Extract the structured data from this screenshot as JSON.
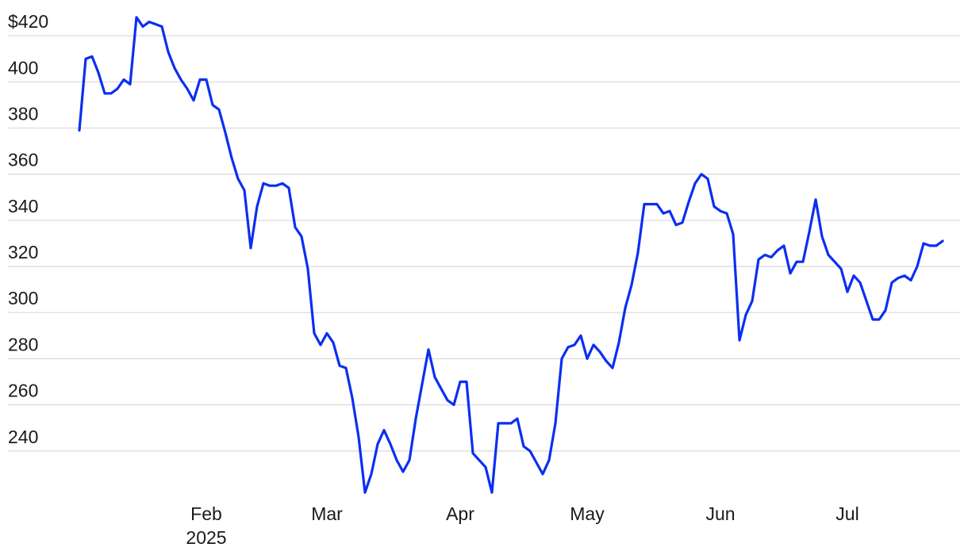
{
  "chart_data": {
    "type": "line",
    "categories": [
      null,
      null,
      null,
      null,
      null,
      null,
      null,
      null,
      null,
      null,
      null,
      null,
      null,
      null,
      null,
      null,
      null,
      null,
      null,
      null,
      "Feb\n2025",
      null,
      null,
      null,
      null,
      null,
      null,
      null,
      null,
      null,
      null,
      null,
      null,
      null,
      null,
      null,
      null,
      null,
      null,
      "Mar",
      null,
      null,
      null,
      null,
      null,
      null,
      null,
      null,
      null,
      null,
      null,
      null,
      null,
      null,
      null,
      null,
      null,
      null,
      null,
      null,
      "Apr",
      null,
      null,
      null,
      null,
      null,
      null,
      null,
      null,
      null,
      null,
      null,
      null,
      null,
      null,
      null,
      null,
      null,
      null,
      null,
      "May",
      null,
      null,
      null,
      null,
      null,
      null,
      null,
      null,
      null,
      null,
      null,
      null,
      null,
      null,
      null,
      null,
      null,
      null,
      null,
      null,
      "Jun",
      null,
      null,
      null,
      null,
      null,
      null,
      null,
      null,
      null,
      null,
      null,
      null,
      null,
      null,
      null,
      null,
      null,
      null,
      null,
      "Jul",
      null,
      null,
      null,
      null,
      null,
      null,
      null,
      null,
      null,
      null,
      null,
      null,
      null,
      null,
      null
    ],
    "values": [
      379,
      410,
      411,
      404,
      395,
      395,
      397,
      401,
      399,
      428,
      424,
      426,
      425,
      424,
      413,
      406,
      401,
      397,
      392,
      401,
      401,
      390,
      388,
      378,
      367,
      358,
      353,
      328,
      346,
      356,
      355,
      355,
      356,
      354,
      337,
      333,
      319,
      291,
      286,
      291,
      287,
      277,
      276,
      263,
      246,
      222,
      230,
      243,
      249,
      243,
      236,
      231,
      236,
      254,
      269,
      284,
      272,
      267,
      262,
      260,
      270,
      270,
      239,
      236,
      233,
      222,
      252,
      252,
      252,
      254,
      242,
      240,
      235,
      230,
      236,
      252,
      280,
      285,
      286,
      290,
      280,
      286,
      283,
      279,
      276,
      287,
      302,
      312,
      326,
      347,
      347,
      347,
      343,
      344,
      338,
      339,
      348,
      356,
      360,
      358,
      346,
      344,
      343,
      334,
      288,
      299,
      305,
      323,
      325,
      324,
      327,
      329,
      317,
      322,
      322,
      335,
      349,
      333,
      325,
      322,
      319,
      309,
      316,
      313,
      305,
      297,
      297,
      301,
      313,
      315,
      316,
      314,
      320,
      330,
      329,
      329,
      331
    ],
    "color": "#0a2ff2",
    "ylim": [
      220,
      430
    ],
    "yticks": [
      240,
      260,
      280,
      300,
      320,
      340,
      360,
      380,
      400,
      {
        "value": 420,
        "label": "$420"
      }
    ],
    "grid": true
  }
}
